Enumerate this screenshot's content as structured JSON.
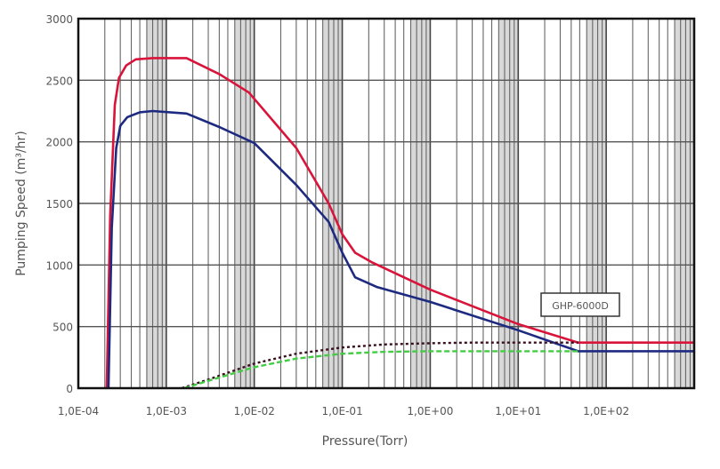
{
  "chart_data": {
    "type": "line",
    "title": "",
    "xlabel": "Pressure(Torr)",
    "ylabel": "Pumping Speed (m³/hr)",
    "xscale": "log",
    "xlim": [
      0.0001,
      1000
    ],
    "ylim": [
      0,
      3000
    ],
    "grid": true,
    "x_tick_labels": [
      "1,0E-04",
      "1,0E-03",
      "1,0E-02",
      "1,0E-01",
      "1,0E+00",
      "1,0E+01",
      "1,0E+02"
    ],
    "x_tick_values": [
      0.0001,
      0.001,
      0.01,
      0.1,
      1,
      10,
      100
    ],
    "y_tick_labels": [
      "0",
      "500",
      "1000",
      "1500",
      "2000",
      "2500",
      "3000"
    ],
    "y_tick_values": [
      0,
      500,
      1000,
      1500,
      2000,
      2500,
      3000
    ],
    "annotation": "GHP-6000D",
    "series": [
      {
        "name": "red-solid",
        "color": "#d8143a",
        "style": "solid",
        "x": [
          0.00021,
          0.00023,
          0.00026,
          0.00029,
          0.00035,
          0.00045,
          0.0007,
          0.0017,
          0.004,
          0.0087,
          0.03,
          0.07,
          0.1,
          0.14,
          0.22,
          1,
          10,
          48,
          1000
        ],
        "y": [
          0,
          1400,
          2300,
          2520,
          2620,
          2670,
          2680,
          2680,
          2550,
          2400,
          1950,
          1500,
          1250,
          1100,
          1020,
          800,
          520,
          370,
          370
        ]
      },
      {
        "name": "blue-solid",
        "color": "#1e2a80",
        "style": "solid",
        "x": [
          0.00022,
          0.00024,
          0.00027,
          0.0003,
          0.00036,
          0.0005,
          0.0007,
          0.0017,
          0.004,
          0.01,
          0.03,
          0.07,
          0.1,
          0.14,
          0.25,
          1,
          10,
          48,
          1000
        ],
        "y": [
          0,
          1300,
          1950,
          2130,
          2200,
          2240,
          2250,
          2230,
          2120,
          1990,
          1650,
          1350,
          1100,
          900,
          820,
          700,
          470,
          300,
          300
        ]
      },
      {
        "name": "black-dotted",
        "color": "#3a1020",
        "style": "dotted",
        "x": [
          0.0015,
          0.003,
          0.01,
          0.03,
          0.1,
          0.3,
          1,
          3,
          10,
          48
        ],
        "y": [
          0,
          70,
          200,
          280,
          330,
          355,
          365,
          370,
          370,
          370
        ]
      },
      {
        "name": "green-dashed",
        "color": "#44cc44",
        "style": "dashed",
        "x": [
          0.0016,
          0.003,
          0.01,
          0.03,
          0.1,
          0.3,
          1,
          3,
          10,
          48
        ],
        "y": [
          0,
          60,
          170,
          240,
          280,
          295,
          300,
          300,
          300,
          300
        ]
      }
    ]
  }
}
